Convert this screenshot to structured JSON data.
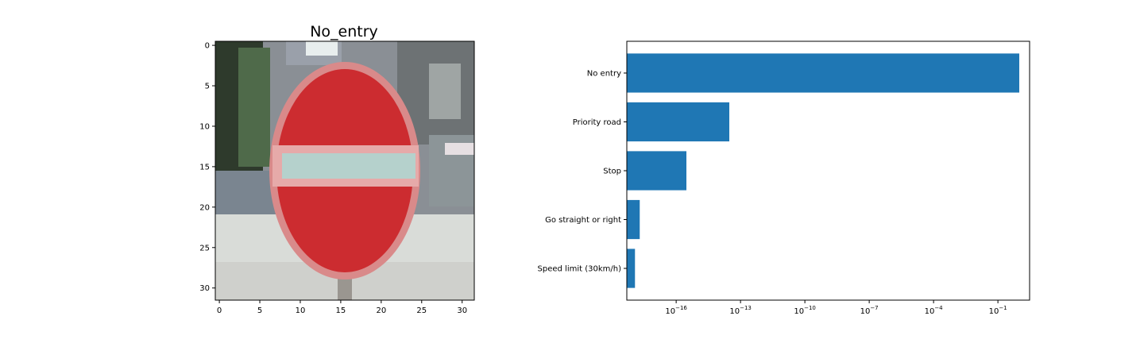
{
  "image_panel": {
    "title": "No_entry",
    "x_ticks": [
      "0",
      "5",
      "10",
      "15",
      "20",
      "25",
      "30"
    ],
    "y_ticks": [
      "0",
      "5",
      "10",
      "15",
      "20",
      "25",
      "30"
    ]
  },
  "chart_data": {
    "type": "bar",
    "orientation": "horizontal",
    "x_scale": "log",
    "categories": [
      "No entry",
      "Priority road",
      "Stop",
      "Go straight or right",
      "Speed limit (30km/h)"
    ],
    "values": [
      0.99,
      3e-14,
      3e-16,
      2e-18,
      1.2e-18
    ],
    "xlim": [
      5e-19,
      3
    ],
    "x_tick_values": [
      1e-16,
      1e-13,
      1e-10,
      1e-07,
      0.0001,
      0.1
    ],
    "x_tick_labels": [
      {
        "base": "10",
        "exp": "−16"
      },
      {
        "base": "10",
        "exp": "−13"
      },
      {
        "base": "10",
        "exp": "−10"
      },
      {
        "base": "10",
        "exp": "−7"
      },
      {
        "base": "10",
        "exp": "−4"
      },
      {
        "base": "10",
        "exp": "−1"
      }
    ],
    "bar_color": "#1f77b4",
    "grid": false,
    "legend": "none"
  }
}
